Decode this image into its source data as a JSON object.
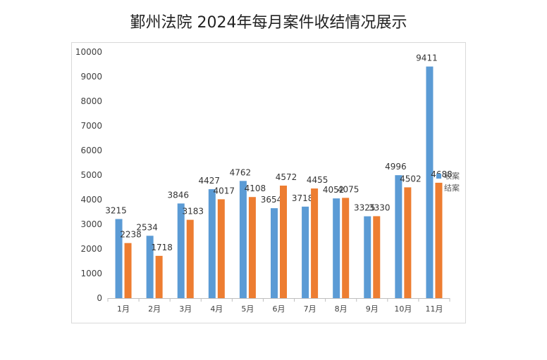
{
  "chart_data": {
    "type": "bar",
    "title": "鄞州法院 2024年每月案件收结情况展示",
    "xlabel": "",
    "ylabel": "",
    "categories": [
      "1月",
      "2月",
      "3月",
      "4月",
      "5月",
      "6月",
      "7月",
      "8月",
      "9月",
      "10月",
      "11月"
    ],
    "series": [
      {
        "name": "收案",
        "color": "#5b9bd5",
        "values": [
          3215,
          2534,
          3846,
          4427,
          4762,
          3654,
          3718,
          4052,
          3325,
          4996,
          9411
        ]
      },
      {
        "name": "结案",
        "color": "#ed7d31",
        "values": [
          2238,
          1718,
          3183,
          4017,
          4108,
          4572,
          4455,
          4075,
          3330,
          4502,
          4688
        ]
      }
    ],
    "ylim": [
      0,
      10000
    ],
    "yticks": [
      0,
      1000,
      2000,
      3000,
      4000,
      5000,
      6000,
      7000,
      8000,
      9000,
      10000
    ],
    "grid": false,
    "legend": "right"
  }
}
